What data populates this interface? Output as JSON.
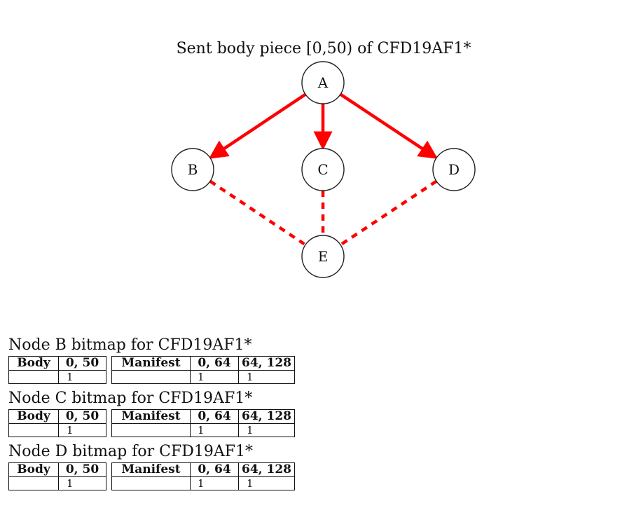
{
  "graph": {
    "title": "Sent body piece [0,50) of CFD19AF1*",
    "nodes": [
      {
        "id": "A",
        "label": "A"
      },
      {
        "id": "B",
        "label": "B"
      },
      {
        "id": "C",
        "label": "C"
      },
      {
        "id": "D",
        "label": "D"
      },
      {
        "id": "E",
        "label": "E"
      }
    ],
    "edges": [
      {
        "from": "A",
        "to": "B",
        "style": "solid-arrow",
        "color": "#ff0000"
      },
      {
        "from": "A",
        "to": "C",
        "style": "solid-arrow",
        "color": "#ff0000"
      },
      {
        "from": "A",
        "to": "D",
        "style": "solid-arrow",
        "color": "#ff0000"
      },
      {
        "from": "B",
        "to": "E",
        "style": "dashed",
        "color": "#ff0000"
      },
      {
        "from": "C",
        "to": "E",
        "style": "dashed",
        "color": "#ff0000"
      },
      {
        "from": "D",
        "to": "E",
        "style": "dashed",
        "color": "#ff0000"
      }
    ]
  },
  "bitmaps": [
    {
      "caption": "Node B bitmap for CFD19AF1*",
      "body": {
        "header": "Body",
        "range": "0, 50",
        "value": "1"
      },
      "manifest": {
        "header": "Manifest",
        "ranges": [
          "0, 64",
          "64, 128"
        ],
        "values": [
          "1",
          "1"
        ]
      }
    },
    {
      "caption": "Node C bitmap for CFD19AF1*",
      "body": {
        "header": "Body",
        "range": "0, 50",
        "value": "1"
      },
      "manifest": {
        "header": "Manifest",
        "ranges": [
          "0, 64",
          "64, 128"
        ],
        "values": [
          "1",
          "1"
        ]
      }
    },
    {
      "caption": "Node D bitmap for CFD19AF1*",
      "body": {
        "header": "Body",
        "range": "0, 50",
        "value": "1"
      },
      "manifest": {
        "header": "Manifest",
        "ranges": [
          "0, 64",
          "64, 128"
        ],
        "values": [
          "1",
          "1"
        ]
      }
    }
  ]
}
